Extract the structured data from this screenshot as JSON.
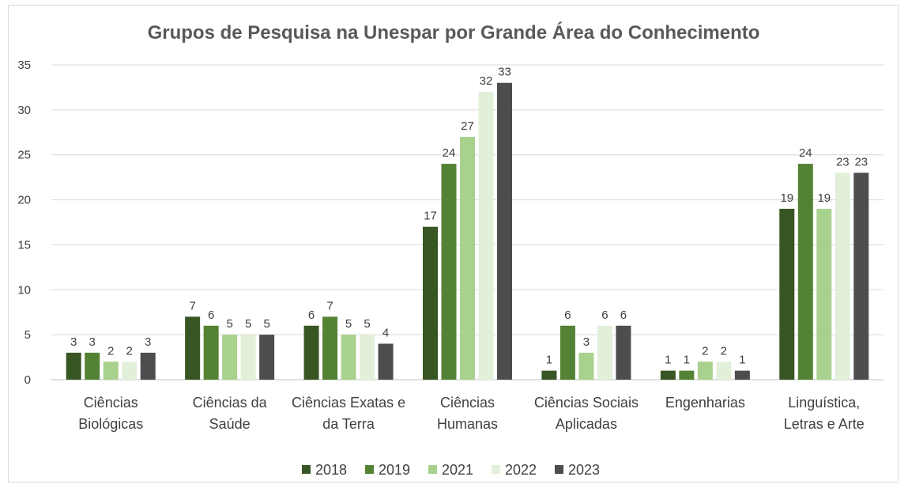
{
  "chart_data": {
    "type": "bar",
    "title": "Grupos de Pesquisa na Unespar por Grande Área do Conhecimento",
    "xlabel": "",
    "ylabel": "",
    "ylim": [
      0,
      35
    ],
    "yticks": [
      0,
      5,
      10,
      15,
      20,
      25,
      30,
      35
    ],
    "grid": true,
    "legend_position": "bottom",
    "categories": [
      [
        "Ciências",
        "Biológicas"
      ],
      [
        "Ciências da",
        "Saúde"
      ],
      [
        "Ciências Exatas e",
        "da Terra"
      ],
      [
        "Ciências",
        "Humanas"
      ],
      [
        "Ciências Sociais",
        "Aplicadas"
      ],
      [
        "Engenharias"
      ],
      [
        "Linguística,",
        "Letras e Arte"
      ]
    ],
    "series": [
      {
        "name": "2018",
        "color": "#375623",
        "values": [
          3,
          7,
          6,
          17,
          1,
          1,
          19
        ]
      },
      {
        "name": "2019",
        "color": "#548235",
        "values": [
          3,
          6,
          7,
          24,
          6,
          1,
          24
        ]
      },
      {
        "name": "2021",
        "color": "#a9d18e",
        "values": [
          2,
          5,
          5,
          27,
          3,
          2,
          19
        ]
      },
      {
        "name": "2022",
        "color": "#e2f0d9",
        "values": [
          2,
          5,
          5,
          32,
          6,
          2,
          23
        ]
      },
      {
        "name": "2023",
        "color": "#4d4d4d",
        "values": [
          3,
          5,
          4,
          33,
          6,
          1,
          23
        ]
      }
    ],
    "gridline_color": "#d9d9d9",
    "axis_color": "#bfbfbf"
  }
}
